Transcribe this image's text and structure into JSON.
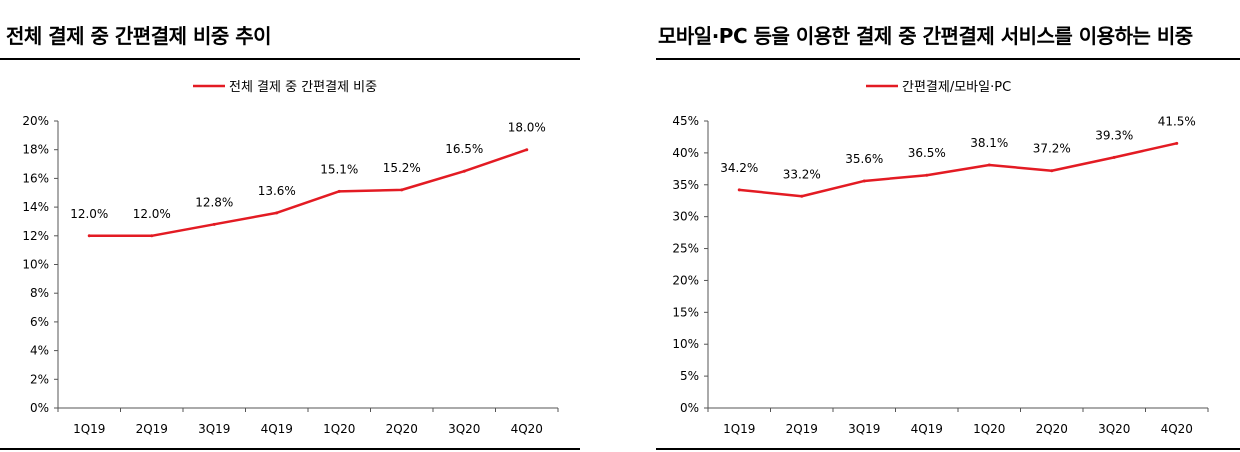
{
  "charts": {
    "left": {
      "title": "전체 결제 중 간편결제 비중 추이",
      "chart_data": {
        "type": "line",
        "title": "전체 결제 중 간편결제 비중 추이",
        "categories": [
          "1Q19",
          "2Q19",
          "3Q19",
          "4Q19",
          "1Q20",
          "2Q20",
          "3Q20",
          "4Q20"
        ],
        "series": [
          {
            "name": "전체 결제 중 간편결제 비중",
            "values": [
              12.0,
              12.0,
              12.8,
              13.6,
              15.1,
              15.2,
              16.5,
              18.0
            ],
            "labels": [
              "12.0%",
              "12.0%",
              "12.8%",
              "13.6%",
              "15.1%",
              "15.2%",
              "16.5%",
              "18.0%"
            ],
            "color": "#e31b23"
          }
        ],
        "ylim": [
          0,
          20
        ],
        "yticks": [
          0,
          2,
          4,
          6,
          8,
          10,
          12,
          14,
          16,
          18,
          20
        ],
        "ytick_labels": [
          "0%",
          "2%",
          "4%",
          "6%",
          "8%",
          "10%",
          "12%",
          "14%",
          "16%",
          "18%",
          "20%"
        ],
        "legend_position": "top-center",
        "grid": false
      }
    },
    "right": {
      "title": "모바일·PC 등을 이용한 결제 중 간편결제 서비스를 이용하는 비중",
      "chart_data": {
        "type": "line",
        "title": "모바일·PC 등을 이용한 결제 중 간편결제 서비스를 이용하는 비중",
        "categories": [
          "1Q19",
          "2Q19",
          "3Q19",
          "4Q19",
          "1Q20",
          "2Q20",
          "3Q20",
          "4Q20"
        ],
        "series": [
          {
            "name": "간편결제/모바일·PC",
            "values": [
              34.2,
              33.2,
              35.6,
              36.5,
              38.1,
              37.2,
              39.3,
              41.5
            ],
            "labels": [
              "34.2%",
              "33.2%",
              "35.6%",
              "36.5%",
              "38.1%",
              "37.2%",
              "39.3%",
              "41.5%"
            ],
            "color": "#e31b23"
          }
        ],
        "ylim": [
          0,
          45
        ],
        "yticks": [
          0,
          5,
          10,
          15,
          20,
          25,
          30,
          35,
          40,
          45
        ],
        "ytick_labels": [
          "0%",
          "5%",
          "10%",
          "15%",
          "20%",
          "25%",
          "30%",
          "35%",
          "40%",
          "45%"
        ],
        "legend_position": "top-center",
        "grid": false
      }
    }
  }
}
